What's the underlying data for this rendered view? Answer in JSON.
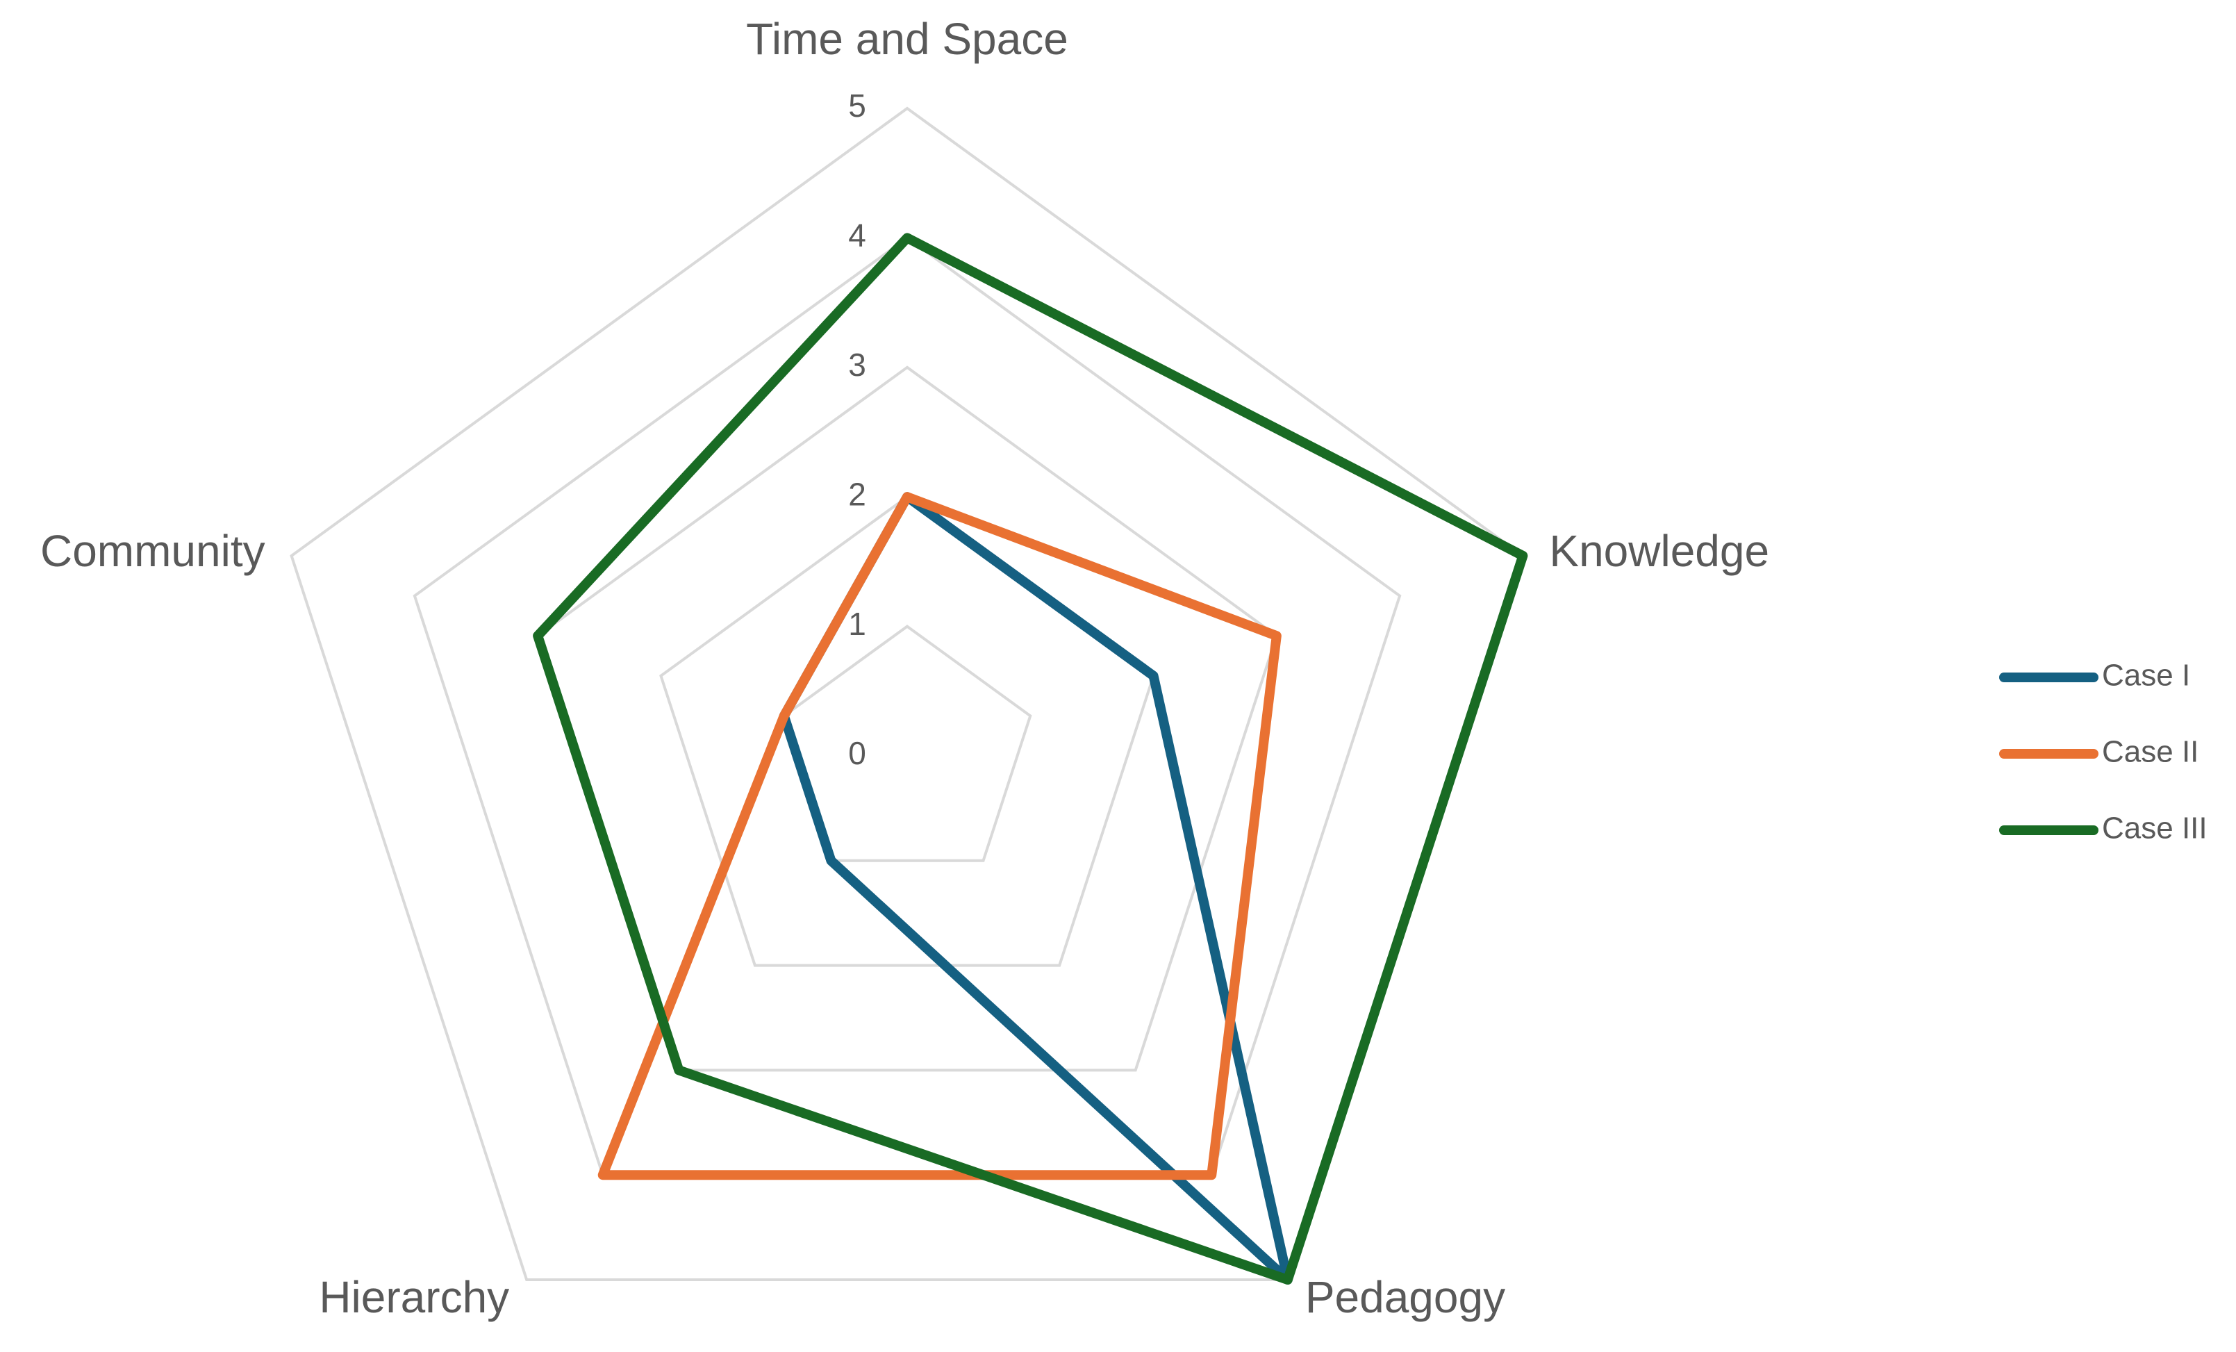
{
  "chart_data": {
    "type": "radar",
    "categories": [
      "Time and Space",
      "Knowledge",
      "Pedagogy",
      "Hierarchy",
      "Community"
    ],
    "series": [
      {
        "name": "Case I",
        "color": "#156082",
        "values": [
          2,
          2,
          5,
          1,
          1
        ]
      },
      {
        "name": "Case II",
        "color": "#e97132",
        "values": [
          2,
          3,
          4,
          4,
          1
        ]
      },
      {
        "name": "Case III",
        "color": "#196b24",
        "values": [
          4,
          5,
          5,
          3,
          3
        ]
      }
    ],
    "rlim": [
      0,
      5
    ],
    "rticks": [
      0,
      1,
      2,
      3,
      4,
      5
    ],
    "grid": true,
    "legend": "right"
  }
}
